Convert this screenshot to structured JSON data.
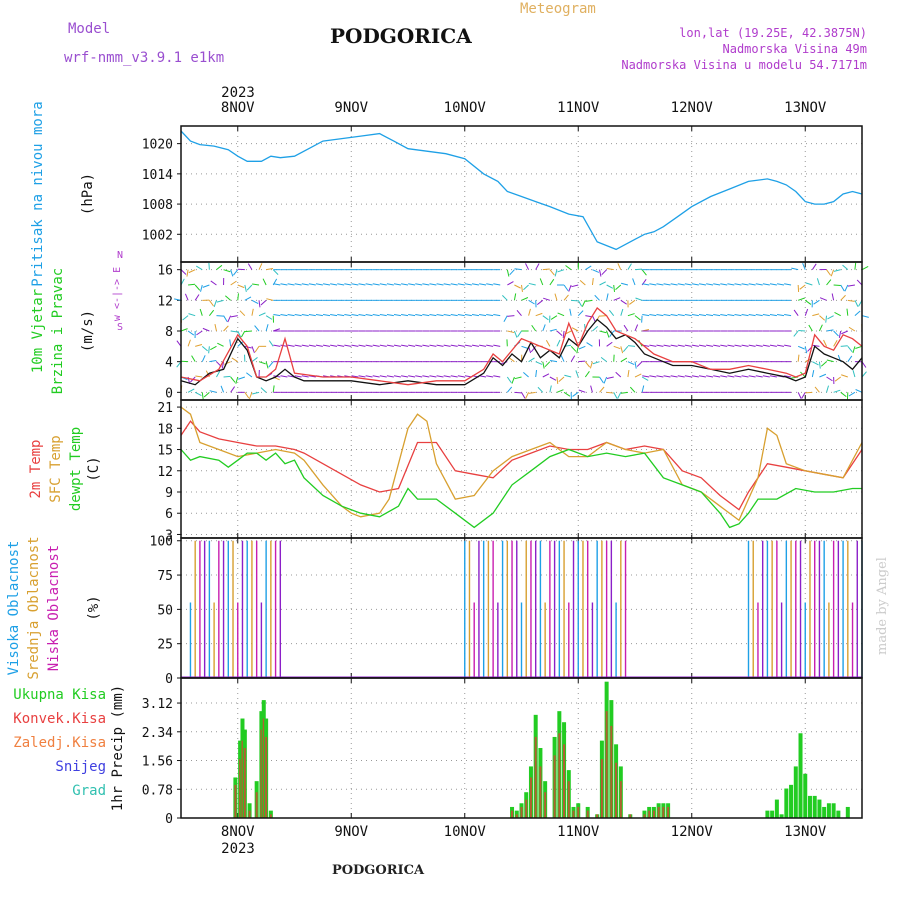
{
  "header": {
    "model_label": "Model",
    "model_name": "wrf-nmm_v3.9.1  e1km",
    "title": "PODGORICA",
    "meteogram": "Meteogram",
    "lonlat": "lon,lat (19.25E, 42.3875N)",
    "elevation": "Nadmorska Visina 49m",
    "model_elevation": "Nadmorska Visina u modelu 54.7171m",
    "footer_title": "PODGORICA",
    "credit": "made by Angel"
  },
  "colors": {
    "pressure": "#1ea0e6",
    "temp2m": "#e84040",
    "sfc": "#d8a030",
    "dewpt": "#22cc22",
    "total_precip": "#22cc22",
    "conv_precip": "#e84040",
    "purple": "#8b1fc8",
    "high_cloud": "#1ea0e6",
    "mid_cloud": "#d8a030",
    "low_cloud": "#c81eb0"
  },
  "chart_data": {
    "x_axis": {
      "year": "2023",
      "days": [
        "8NOV",
        "9NOV",
        "10NOV",
        "11NOV",
        "12NOV",
        "13NOV"
      ],
      "start_hour": -12,
      "end_hour": 132
    },
    "panels": [
      {
        "id": "pressure",
        "type": "line",
        "ylabel": "Pritisak na nivou mora",
        "unit": "(hPa)",
        "yticks": [
          1002,
          1008,
          1014,
          1020
        ],
        "ylim": [
          996.5,
          1023.5
        ],
        "series": [
          {
            "name": "Pritisak na nivou mora",
            "x": [
              -12,
              -10,
              -8,
              -5,
              -2,
              0,
              2,
              5,
              7,
              9,
              12,
              15,
              18,
              22,
              26,
              30,
              33,
              36,
              40,
              44,
              48,
              52,
              55,
              57,
              60,
              63,
              66,
              70,
              73,
              76,
              80,
              84,
              86,
              88,
              90,
              93,
              96,
              100,
              104,
              108,
              112,
              114,
              116,
              118,
              120,
              122,
              124,
              126,
              128,
              130,
              132
            ],
            "y": [
              1022.5,
              1020.5,
              1019.8,
              1019.5,
              1018.8,
              1017.5,
              1016.5,
              1016.5,
              1017.5,
              1017.2,
              1017.5,
              1019.0,
              1020.5,
              1021.0,
              1021.5,
              1022,
              1020.5,
              1019.0,
              1018.5,
              1018.0,
              1017.0,
              1014.0,
              1012.5,
              1010.5,
              1009.5,
              1008.5,
              1007.5,
              1006.0,
              1005.5,
              1000.5,
              999.0,
              1001.0,
              1002.0,
              1002.5,
              1003.5,
              1005.5,
              1007.5,
              1009.5,
              1011.0,
              1012.5,
              1013.0,
              1012.5,
              1011.8,
              1010.5,
              1008.5,
              1008.0,
              1008.0,
              1008.5,
              1010.0,
              1010.5,
              1010.0
            ]
          }
        ]
      },
      {
        "id": "wind",
        "type": "line",
        "ylabel": "10m Vjetar Brzina i Pravac",
        "unit": "(m/s)",
        "compass": "w <-|-> E",
        "compass_top": "N",
        "compass_bottom": "S",
        "yticks": [
          0,
          4,
          8,
          12,
          16
        ],
        "ylim": [
          -1,
          17
        ],
        "series": [
          {
            "name": "speed",
            "x": [
              -12,
              -9,
              -6,
              -3,
              0,
              2,
              4,
              6,
              8,
              10,
              12,
              14,
              18,
              24,
              30,
              36,
              42,
              48,
              52,
              54,
              56,
              58,
              60,
              62,
              64,
              66,
              68,
              70,
              72,
              74,
              76,
              78,
              80,
              82,
              84,
              86,
              88,
              90,
              92,
              96,
              100,
              104,
              108,
              112,
              116,
              118,
              120,
              122,
              124,
              126,
              128,
              130,
              132
            ],
            "y": [
              1.5,
              1,
              2.5,
              3,
              7,
              5.5,
              2,
              1.5,
              2,
              3,
              2,
              1.5,
              1.5,
              1.5,
              1,
              1.5,
              1,
              1,
              2.5,
              4.5,
              3.5,
              5,
              4,
              6.5,
              4.5,
              5.5,
              4.5,
              7,
              6,
              8,
              9.5,
              8.5,
              7,
              7.5,
              6.5,
              5,
              4.5,
              4,
              3.5,
              3.5,
              3,
              2.5,
              3,
              2.5,
              2,
              1.5,
              2,
              6,
              5,
              4.5,
              4,
              3,
              4.5
            ]
          },
          {
            "name": "gust",
            "x": [
              -12,
              -8,
              -4,
              0,
              2,
              4,
              6,
              8,
              10,
              12,
              18,
              24,
              30,
              36,
              42,
              48,
              52,
              54,
              56,
              60,
              64,
              68,
              70,
              72,
              74,
              76,
              78,
              80,
              84,
              88,
              92,
              96,
              100,
              104,
              108,
              112,
              116,
              118,
              120,
              122,
              124,
              126,
              128,
              130,
              132
            ],
            "y": [
              2,
              1.5,
              3,
              7.5,
              6,
              2,
              2,
              3,
              7,
              2.5,
              2,
              2,
              1.5,
              1,
              1.5,
              1.5,
              3,
              5,
              4,
              7,
              6,
              5,
              9,
              6,
              9,
              11,
              10,
              8,
              7,
              5,
              4,
              4,
              3,
              3,
              3.5,
              3,
              2.5,
              2,
              2.5,
              7.5,
              6,
              5.5,
              7.5,
              7,
              6
            ]
          }
        ]
      },
      {
        "id": "temperature",
        "type": "line",
        "ylabel_lines": [
          "2m Temp",
          "SFC Temp",
          "dewpt Temp"
        ],
        "unit": "(C)",
        "yticks": [
          3,
          6,
          9,
          12,
          15,
          18,
          21
        ],
        "ylim": [
          2.5,
          22
        ],
        "series": [
          {
            "name": "2m Temp",
            "x": [
              -12,
              -10,
              -8,
              -4,
              0,
              4,
              8,
              12,
              14,
              18,
              22,
              26,
              30,
              34,
              38,
              42,
              46,
              50,
              54,
              58,
              62,
              66,
              70,
              74,
              78,
              82,
              86,
              90,
              94,
              98,
              102,
              106,
              108,
              112,
              116,
              120,
              124,
              128,
              132
            ],
            "y": [
              17,
              19,
              17.5,
              16.5,
              16,
              15.5,
              15.5,
              15,
              14.5,
              13,
              11.5,
              10,
              9,
              9.5,
              16,
              16,
              12,
              11.5,
              11,
              13.5,
              14.5,
              15.5,
              15,
              15,
              16,
              15,
              15.5,
              15,
              12,
              11,
              8.5,
              6.5,
              9,
              13,
              12.5,
              12,
              11.5,
              11,
              15
            ]
          },
          {
            "name": "SFC Temp",
            "x": [
              -12,
              -10,
              -8,
              -4,
              0,
              4,
              8,
              12,
              14,
              18,
              22,
              24,
              26,
              30,
              32,
              34,
              36,
              38,
              40,
              42,
              46,
              50,
              54,
              58,
              62,
              66,
              70,
              74,
              78,
              82,
              86,
              90,
              94,
              98,
              102,
              106,
              110,
              112,
              114,
              116,
              120,
              124,
              128,
              132
            ],
            "y": [
              21,
              20,
              16,
              15,
              14,
              14.5,
              15,
              14.5,
              13.5,
              10,
              7,
              6,
              5.5,
              6,
              8,
              13,
              18,
              20,
              19,
              13,
              8,
              8.5,
              12,
              14,
              15,
              16,
              14,
              14,
              16,
              15,
              14.5,
              15,
              10,
              9,
              7,
              5,
              11,
              18,
              17,
              13,
              12,
              11.5,
              11,
              16
            ]
          },
          {
            "name": "dewpt Temp",
            "x": [
              -12,
              -10,
              -8,
              -4,
              -2,
              0,
              2,
              4,
              6,
              8,
              10,
              12,
              14,
              18,
              22,
              26,
              30,
              34,
              36,
              38,
              42,
              46,
              50,
              54,
              58,
              62,
              66,
              70,
              74,
              78,
              82,
              86,
              90,
              94,
              98,
              102,
              104,
              106,
              108,
              110,
              114,
              118,
              122,
              126,
              130,
              132
            ],
            "y": [
              15,
              13.5,
              14,
              13.5,
              12.5,
              13.5,
              14.5,
              14.5,
              13.5,
              14.5,
              13,
              13.5,
              11,
              8.5,
              7,
              6,
              5.5,
              7,
              9.5,
              8,
              8,
              6,
              4,
              6,
              10,
              12,
              14,
              15,
              14,
              14.5,
              14,
              14.5,
              11,
              10,
              9,
              6,
              4,
              4.5,
              6,
              8,
              8,
              9.5,
              9,
              9,
              9.5,
              9.5
            ]
          }
        ]
      },
      {
        "id": "cloud",
        "type": "bar",
        "ylabel_lines": [
          "Visoka Oblacnost",
          "Srednja Oblacnost",
          "Niska Oblacnost"
        ],
        "unit": "(%)",
        "yticks": [
          0,
          25,
          50,
          75,
          100
        ],
        "ylim": [
          0,
          102
        ],
        "blocks": [
          {
            "from": -10,
            "to": 9,
            "value": 100
          },
          {
            "from": 48,
            "to": 82,
            "value": 100
          },
          {
            "from": 108,
            "to": 132,
            "value": 100
          }
        ]
      },
      {
        "id": "precip",
        "type": "bar",
        "ylabel": "1hr Precip",
        "unit": "(mm)",
        "legend": [
          "Ukupna Kisa",
          "Konvek.Kisa",
          "Zaledj.Kisa",
          "Snijeg",
          "Grad"
        ],
        "yticks": [
          0,
          0.78,
          1.56,
          2.34,
          3.12
        ],
        "ylim": [
          0,
          3.8
        ],
        "bars": [
          {
            "x": -0.5,
            "total": 1.1,
            "conv": 0.9
          },
          {
            "x": 0.5,
            "total": 2.1,
            "conv": 1.6
          },
          {
            "x": 1.0,
            "total": 2.7,
            "conv": 2.1
          },
          {
            "x": 1.5,
            "total": 2.4,
            "conv": 1.9
          },
          {
            "x": 2.5,
            "total": 0.4,
            "conv": 0.2
          },
          {
            "x": 4.0,
            "total": 1.0,
            "conv": 0.7
          },
          {
            "x": 5.0,
            "total": 2.9,
            "conv": 2.4
          },
          {
            "x": 5.5,
            "total": 3.2,
            "conv": 2.7
          },
          {
            "x": 6.0,
            "total": 2.7,
            "conv": 2.2
          },
          {
            "x": 7.0,
            "total": 0.2,
            "conv": 0.1
          },
          {
            "x": 58,
            "total": 0.3,
            "conv": 0.2
          },
          {
            "x": 59,
            "total": 0.2,
            "conv": 0.1
          },
          {
            "x": 60,
            "total": 0.4,
            "conv": 0.3
          },
          {
            "x": 61,
            "total": 0.7,
            "conv": 0.5
          },
          {
            "x": 62,
            "total": 1.4,
            "conv": 1.1
          },
          {
            "x": 63,
            "total": 2.8,
            "conv": 2.2
          },
          {
            "x": 64,
            "total": 1.9,
            "conv": 1.4
          },
          {
            "x": 65,
            "total": 1.0,
            "conv": 0.7
          },
          {
            "x": 67,
            "total": 2.2,
            "conv": 1.7
          },
          {
            "x": 68,
            "total": 2.9,
            "conv": 2.3
          },
          {
            "x": 69,
            "total": 2.6,
            "conv": 2.0
          },
          {
            "x": 70,
            "total": 1.3,
            "conv": 1.0
          },
          {
            "x": 71,
            "total": 0.3,
            "conv": 0.2
          },
          {
            "x": 72,
            "total": 0.4,
            "conv": 0.3
          },
          {
            "x": 74,
            "total": 0.3,
            "conv": 0.2
          },
          {
            "x": 76,
            "total": 0.1,
            "conv": 0.1
          },
          {
            "x": 77,
            "total": 2.1,
            "conv": 1.6
          },
          {
            "x": 78,
            "total": 3.7,
            "conv": 2.9
          },
          {
            "x": 79,
            "total": 3.2,
            "conv": 2.5
          },
          {
            "x": 80,
            "total": 2.0,
            "conv": 1.5
          },
          {
            "x": 81,
            "total": 1.4,
            "conv": 1.0
          },
          {
            "x": 83,
            "total": 0.1,
            "conv": 0.1
          },
          {
            "x": 86,
            "total": 0.2,
            "conv": 0.1
          },
          {
            "x": 87,
            "total": 0.3,
            "conv": 0.2
          },
          {
            "x": 88,
            "total": 0.3,
            "conv": 0.2
          },
          {
            "x": 89,
            "total": 0.4,
            "conv": 0.3
          },
          {
            "x": 90,
            "total": 0.4,
            "conv": 0.3
          },
          {
            "x": 91,
            "total": 0.4,
            "conv": 0.3
          },
          {
            "x": 112,
            "total": 0.2,
            "conv": 0.0
          },
          {
            "x": 113,
            "total": 0.2,
            "conv": 0.0
          },
          {
            "x": 114,
            "total": 0.5,
            "conv": 0.0
          },
          {
            "x": 115,
            "total": 0.1,
            "conv": 0.0
          },
          {
            "x": 116,
            "total": 0.8,
            "conv": 0.0
          },
          {
            "x": 117,
            "total": 0.9,
            "conv": 0.0
          },
          {
            "x": 118,
            "total": 1.4,
            "conv": 0.0
          },
          {
            "x": 119,
            "total": 2.3,
            "conv": 0.0
          },
          {
            "x": 120,
            "total": 1.2,
            "conv": 0.0
          },
          {
            "x": 121,
            "total": 0.6,
            "conv": 0.0
          },
          {
            "x": 122,
            "total": 0.6,
            "conv": 0.0
          },
          {
            "x": 123,
            "total": 0.5,
            "conv": 0.0
          },
          {
            "x": 124,
            "total": 0.3,
            "conv": 0.0
          },
          {
            "x": 125,
            "total": 0.4,
            "conv": 0.0
          },
          {
            "x": 126,
            "total": 0.4,
            "conv": 0.0
          },
          {
            "x": 127,
            "total": 0.2,
            "conv": 0.0
          },
          {
            "x": 129,
            "total": 0.3,
            "conv": 0.0
          }
        ]
      }
    ]
  }
}
